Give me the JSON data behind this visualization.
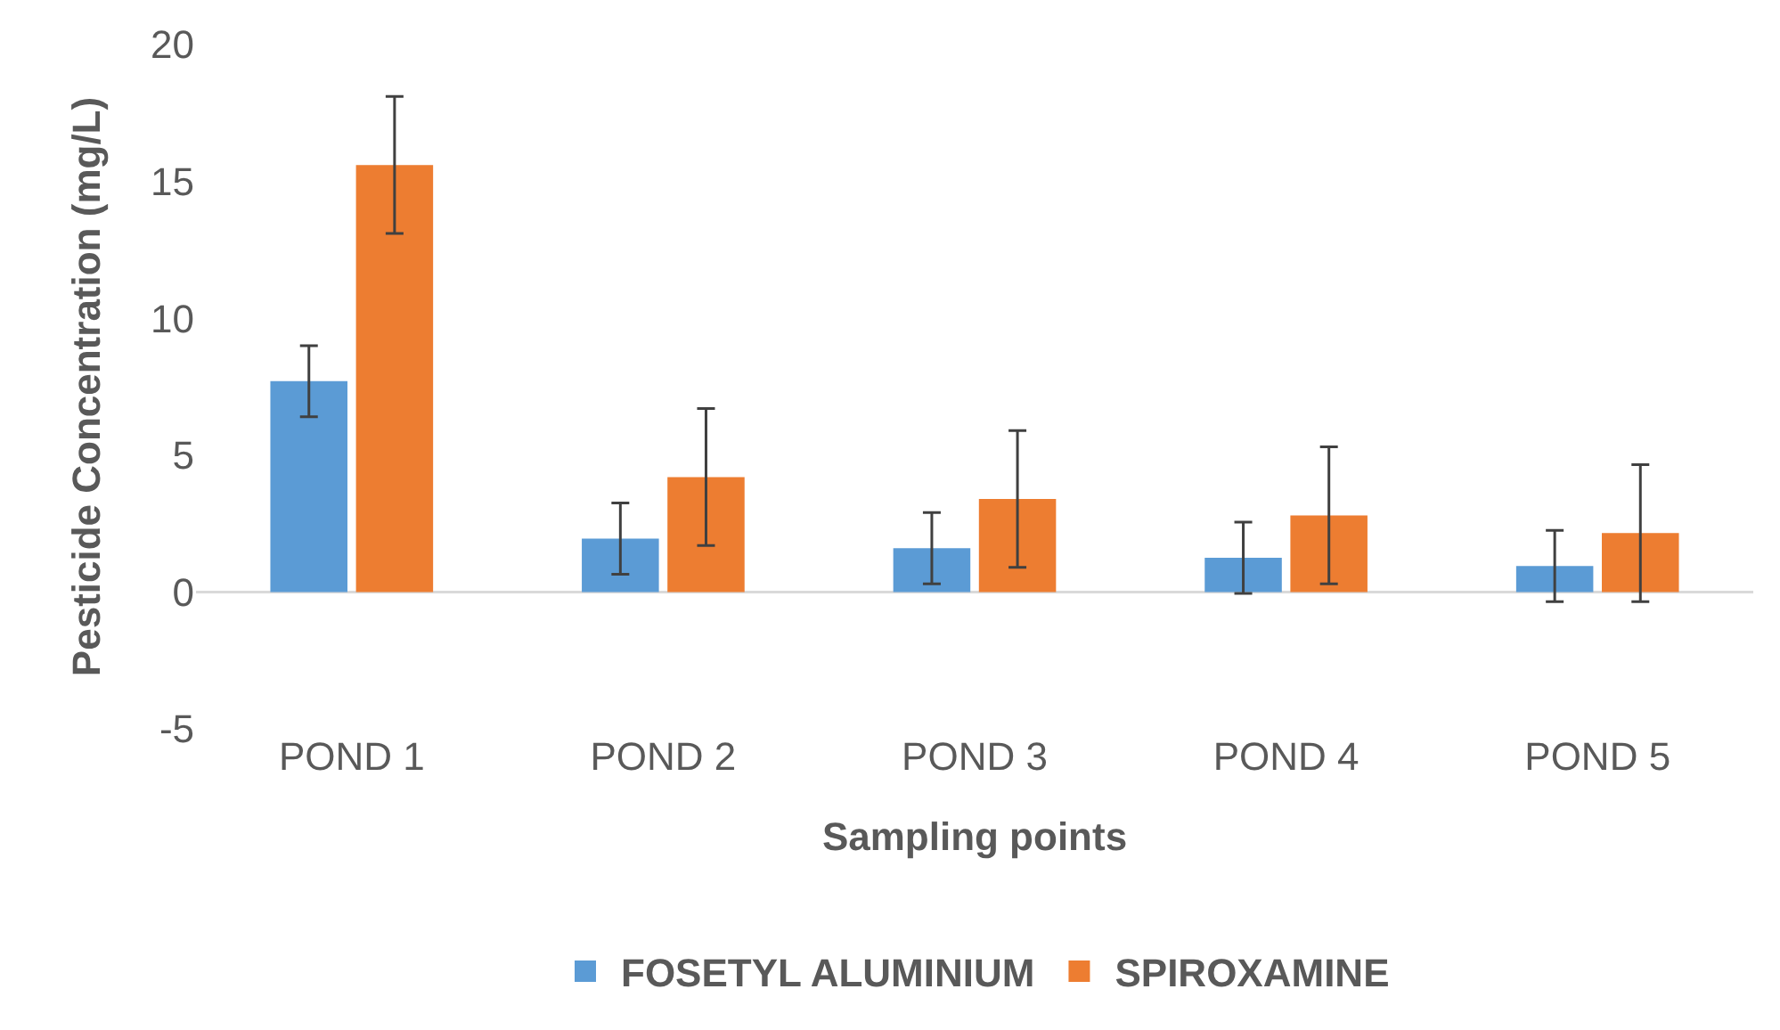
{
  "chart_data": {
    "type": "bar",
    "xlabel": "Sampling points",
    "ylabel": "Pesticide Concentration (mg/L)",
    "categories": [
      "POND 1",
      "POND 2",
      "POND 3",
      "POND 4",
      "POND 5"
    ],
    "series": [
      {
        "name": "FOSETYL ALUMINIUM",
        "color": "#5b9bd5",
        "values": [
          7.7,
          1.95,
          1.6,
          1.25,
          0.95
        ],
        "errors": [
          1.3,
          1.3,
          1.3,
          1.3,
          1.3
        ]
      },
      {
        "name": "SPIROXAMINE",
        "color": "#ed7d31",
        "values": [
          15.6,
          4.2,
          3.4,
          2.8,
          2.15
        ],
        "errors": [
          2.5,
          2.5,
          2.5,
          2.5,
          2.5
        ]
      }
    ],
    "ylim": [
      -5,
      20
    ],
    "yticks": [
      -5,
      0,
      5,
      10,
      15,
      20
    ],
    "grid": false,
    "ref_lines": [
      {
        "axis": "y",
        "value": 0,
        "color": "#d9d9d9"
      }
    ],
    "legend": "bottom"
  }
}
